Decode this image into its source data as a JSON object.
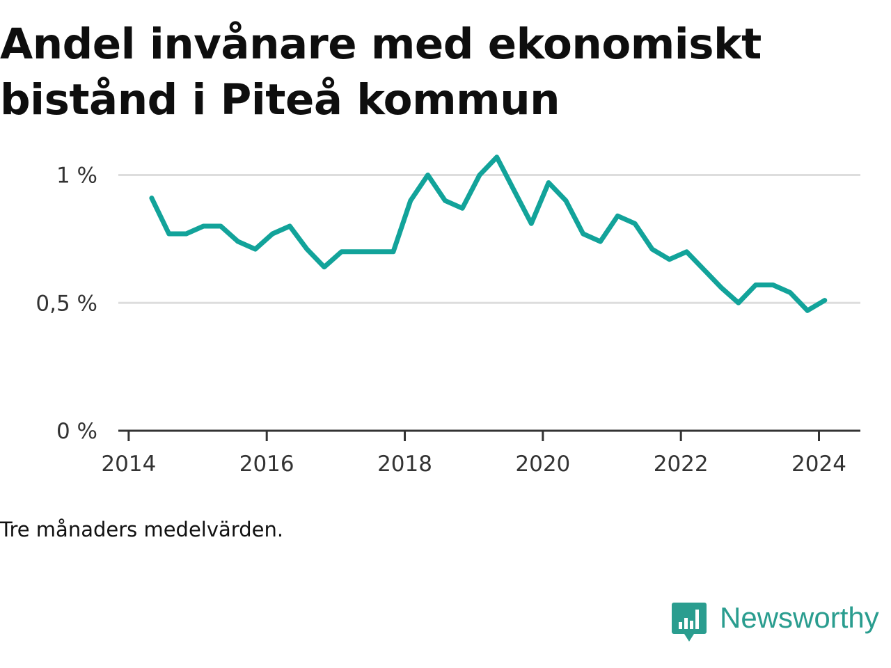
{
  "title": "Andel invånare med ekonomiskt bistånd i Piteå kommun",
  "note": "Tre månaders medelvärden.",
  "brand": {
    "name": "Newsworthy",
    "icon": "chart-bubble-icon",
    "color": "#2a9d8f"
  },
  "chart_data": {
    "type": "line",
    "title": "Andel invånare med ekonomiskt bistånd i Piteå kommun",
    "xlabel": "",
    "ylabel": "",
    "x_ticks": [
      "2014",
      "2016",
      "2018",
      "2020",
      "2022",
      "2024"
    ],
    "y_ticks": [
      {
        "value": 0,
        "label": "0 %"
      },
      {
        "value": 0.5,
        "label": "0,5 %"
      },
      {
        "value": 1,
        "label": "1 %"
      }
    ],
    "xlim": [
      2013.85,
      2024.6
    ],
    "ylim": [
      0,
      1.2
    ],
    "grid": true,
    "line_color": "#12a39a",
    "series": [
      {
        "x": [
          "2014-05",
          "2014-08",
          "2014-11",
          "2015-02",
          "2015-05",
          "2015-08",
          "2015-11",
          "2016-02",
          "2016-05",
          "2016-08",
          "2016-11",
          "2017-02",
          "2017-05",
          "2017-08",
          "2017-11",
          "2018-02",
          "2018-05",
          "2018-08",
          "2018-11",
          "2019-02",
          "2019-05",
          "2019-08",
          "2019-11",
          "2020-02",
          "2020-05",
          "2020-08",
          "2020-11",
          "2021-02",
          "2021-05",
          "2021-08",
          "2021-11",
          "2022-02",
          "2022-05",
          "2022-08",
          "2022-11",
          "2023-02",
          "2023-05",
          "2023-08",
          "2023-11",
          "2024-02"
        ],
        "values": [
          0.91,
          0.77,
          0.77,
          0.8,
          0.8,
          0.74,
          0.71,
          0.77,
          0.8,
          0.71,
          0.64,
          0.7,
          0.7,
          0.7,
          0.7,
          0.9,
          1.0,
          0.9,
          0.87,
          1.0,
          1.07,
          0.94,
          0.81,
          0.97,
          0.9,
          0.77,
          0.74,
          0.84,
          0.81,
          0.71,
          0.67,
          0.7,
          0.63,
          0.56,
          0.5,
          0.57,
          0.57,
          0.54,
          0.47,
          0.51
        ]
      }
    ]
  }
}
